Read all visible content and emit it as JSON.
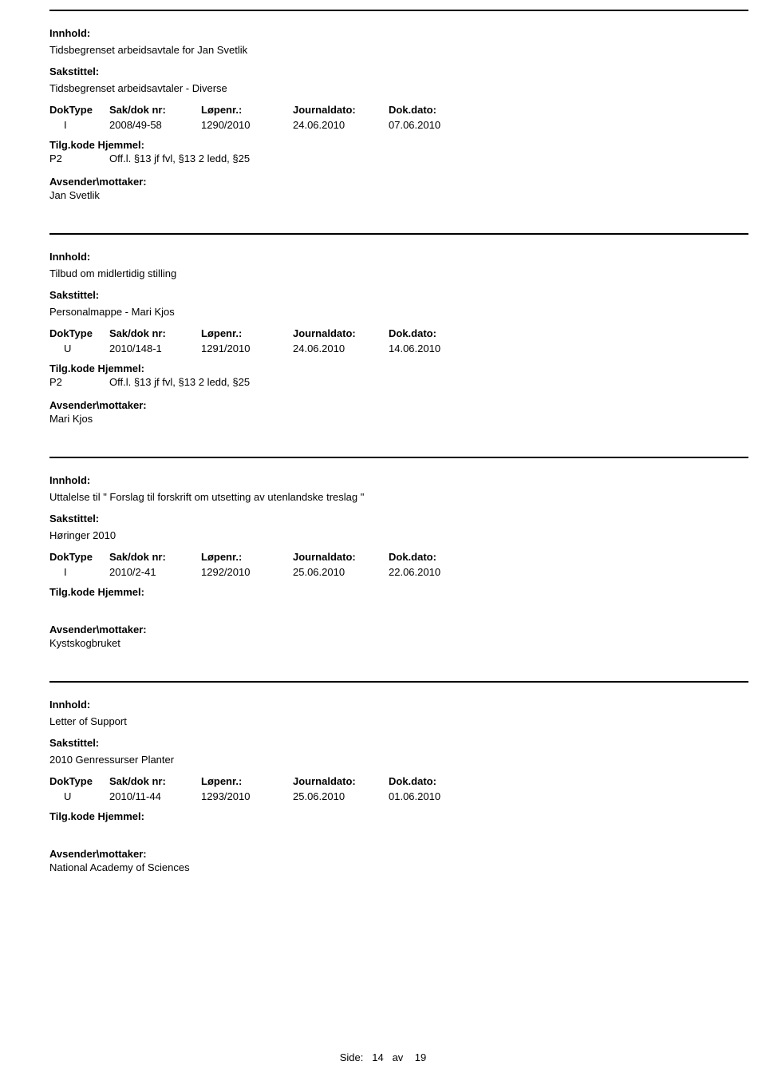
{
  "labels": {
    "innhold": "Innhold:",
    "sakstittel": "Sakstittel:",
    "doktype": "DokType",
    "saknr": "Sak/dok nr:",
    "lopenr": "Løpenr.:",
    "journaldato": "Journaldato:",
    "dokdato": "Dok.dato:",
    "tilgkode": "Tilg.kode",
    "hjemmel": "Hjemmel:",
    "avsender": "Avsender\\mottaker:",
    "side": "Side:",
    "av": "av"
  },
  "pager": {
    "current": "14",
    "total": "19"
  },
  "entries": [
    {
      "innhold": "Tidsbegrenset arbeidsavtale for Jan Svetlik",
      "sakstittel": "Tidsbegrenset arbeidsavtaler - Diverse",
      "doktype": "I",
      "saknr": "2008/49-58",
      "lopenr": "1290/2010",
      "journaldato": "24.06.2010",
      "dokdato": "07.06.2010",
      "tilgkode": "P2",
      "hjemmel": "Off.l. §13 jf fvl, §13 2 ledd, §25",
      "avsender": "Jan Svetlik"
    },
    {
      "innhold": "Tilbud om midlertidig stilling",
      "sakstittel": "Personalmappe - Mari Kjos",
      "doktype": "U",
      "saknr": "2010/148-1",
      "lopenr": "1291/2010",
      "journaldato": "24.06.2010",
      "dokdato": "14.06.2010",
      "tilgkode": "P2",
      "hjemmel": "Off.l. §13 jf fvl, §13 2 ledd, §25",
      "avsender": "Mari Kjos"
    },
    {
      "innhold": "Uttalelse til \" Forslag til forskrift om utsetting av utenlandske treslag \"",
      "sakstittel": "Høringer 2010",
      "doktype": "I",
      "saknr": "2010/2-41",
      "lopenr": "1292/2010",
      "journaldato": "25.06.2010",
      "dokdato": "22.06.2010",
      "tilgkode": "",
      "hjemmel": "",
      "avsender": "Kystskogbruket"
    },
    {
      "innhold": "Letter of Support",
      "sakstittel": "2010 Genressurser Planter",
      "doktype": "U",
      "saknr": "2010/11-44",
      "lopenr": "1293/2010",
      "journaldato": "25.06.2010",
      "dokdato": "01.06.2010",
      "tilgkode": "",
      "hjemmel": "",
      "avsender": "National Academy of Sciences"
    }
  ]
}
